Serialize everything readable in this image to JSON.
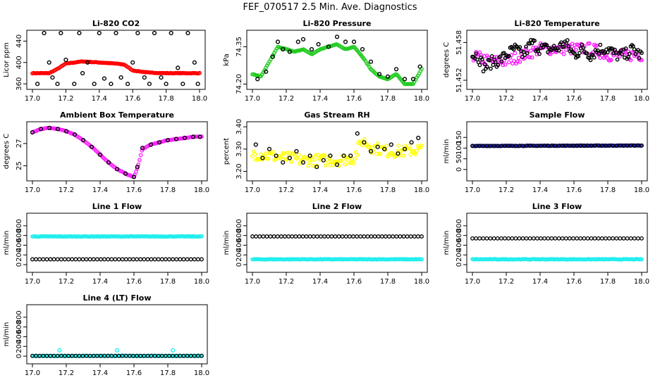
{
  "title": "FEF_070517  2.5 Min. Ave. Diagnostics",
  "colors": {
    "black": "#000000",
    "red": "#ff0000",
    "green": "#22cc22",
    "magenta": "#ff22ff",
    "yellow": "#ffff00",
    "blue": "#1a1aa6",
    "cyan": "#22eeee"
  },
  "chart_data": [
    {
      "type": "scatter",
      "title": "Li-820 CO2",
      "ylabel": "Licor ppm",
      "xlim": [
        17.0,
        18.0
      ],
      "ylim": [
        355,
        455
      ],
      "xticks": [
        "17.0",
        "17.2",
        "17.4",
        "17.6",
        "17.8",
        "18.0"
      ],
      "yticks": [
        {
          "v": 360,
          "label": "360"
        },
        {
          "v": 400,
          "label": "400"
        },
        {
          "v": 440,
          "label": "440"
        }
      ],
      "series": [
        {
          "color": "red",
          "style": "dense",
          "x": [
            17.0,
            17.1,
            17.15,
            17.2,
            17.3,
            17.4,
            17.5,
            17.55,
            17.6,
            17.7,
            17.8,
            17.9,
            18.0
          ],
          "y": [
            380,
            380,
            388,
            398,
            402,
            400,
            398,
            396,
            385,
            381,
            380,
            380,
            380
          ]
        },
        {
          "color": "black",
          "style": "ring",
          "x": [
            17.03,
            17.07,
            17.1,
            17.12,
            17.15,
            17.17,
            17.2,
            17.25,
            17.28,
            17.3,
            17.33,
            17.37,
            17.4,
            17.43,
            17.47,
            17.5,
            17.53,
            17.57,
            17.6,
            17.63,
            17.67,
            17.7,
            17.73,
            17.77,
            17.8,
            17.83,
            17.87,
            17.9,
            17.93,
            17.97,
            17.99
          ],
          "y": [
            360,
            455,
            400,
            372,
            360,
            455,
            405,
            360,
            455,
            380,
            400,
            360,
            455,
            370,
            360,
            455,
            372,
            360,
            400,
            455,
            372,
            360,
            455,
            372,
            360,
            455,
            390,
            360,
            455,
            400,
            360
          ]
        }
      ]
    },
    {
      "type": "scatter",
      "title": "Li-820 Pressure",
      "ylabel": "kPa",
      "xlim": [
        17.0,
        18.0
      ],
      "ylim": [
        74.19,
        74.405
      ],
      "xticks": [
        "17.0",
        "17.2",
        "17.4",
        "17.6",
        "17.8",
        "18.0"
      ],
      "yticks": [
        {
          "v": 74.2,
          "label": "74.20"
        },
        {
          "v": 74.35,
          "label": "74.35"
        }
      ],
      "series": [
        {
          "color": "green",
          "style": "dense",
          "x": [
            17.0,
            17.05,
            17.1,
            17.15,
            17.2,
            17.25,
            17.3,
            17.35,
            17.4,
            17.45,
            17.5,
            17.55,
            17.6,
            17.65,
            17.7,
            17.75,
            17.8,
            17.85,
            17.9,
            17.95,
            18.0
          ],
          "y": [
            74.24,
            74.23,
            74.29,
            74.35,
            74.34,
            74.33,
            74.34,
            74.32,
            74.34,
            74.35,
            74.36,
            74.34,
            74.35,
            74.31,
            74.26,
            74.23,
            74.22,
            74.24,
            74.2,
            74.2,
            74.26
          ]
        },
        {
          "color": "black",
          "style": "ring",
          "x": [
            17.03,
            17.08,
            17.12,
            17.15,
            17.18,
            17.22,
            17.27,
            17.3,
            17.35,
            17.39,
            17.45,
            17.5,
            17.55,
            17.6,
            17.65,
            17.7,
            17.75,
            17.8,
            17.85,
            17.9,
            17.95,
            17.99
          ],
          "y": [
            74.22,
            74.25,
            74.31,
            74.37,
            74.34,
            74.33,
            74.37,
            74.38,
            74.34,
            74.36,
            74.35,
            74.39,
            74.37,
            74.37,
            74.34,
            74.29,
            74.24,
            74.23,
            74.26,
            74.22,
            74.22,
            74.27
          ]
        }
      ]
    },
    {
      "type": "scatter",
      "title": "Li-820 Temperature",
      "ylabel": "degrees C",
      "xlim": [
        17.0,
        18.0
      ],
      "ylim": [
        51.451,
        51.4595
      ],
      "xticks": [
        "17.0",
        "17.2",
        "17.4",
        "17.6",
        "17.8",
        "18.0"
      ],
      "yticks": [
        {
          "v": 51.452,
          "label": "51.452"
        },
        {
          "v": 51.458,
          "label": "51.458"
        }
      ],
      "series": [
        {
          "color": "magenta",
          "style": "scatter-ring",
          "x": [
            17.0,
            17.1,
            17.2,
            17.3,
            17.4,
            17.5,
            17.6,
            17.7,
            17.8,
            17.9,
            18.0
          ],
          "y": [
            51.456,
            51.455,
            51.455,
            51.456,
            51.457,
            51.457,
            51.457,
            51.457,
            51.456,
            51.456,
            51.456
          ]
        },
        {
          "color": "black",
          "style": "scatter-ring",
          "x": [
            17.03,
            17.07,
            17.12,
            17.15,
            17.2,
            17.25,
            17.3,
            17.35,
            17.4,
            17.45,
            17.5,
            17.55,
            17.6,
            17.65,
            17.7,
            17.75,
            17.8,
            17.85,
            17.9,
            17.95,
            17.99
          ],
          "y": [
            51.456,
            51.454,
            51.455,
            51.455,
            51.456,
            51.457,
            51.456,
            51.458,
            51.457,
            51.457,
            51.457,
            51.458,
            51.456,
            51.457,
            51.456,
            51.457,
            51.457,
            51.456,
            51.456,
            51.457,
            51.456
          ]
        }
      ]
    },
    {
      "type": "scatter",
      "title": "Ambient Box Temperature",
      "ylabel": "degrees C",
      "xlim": [
        17.0,
        18.0
      ],
      "ylim": [
        23.9,
        28.7
      ],
      "xticks": [
        "17.0",
        "17.2",
        "17.4",
        "17.6",
        "17.8",
        "18.0"
      ],
      "yticks": [
        {
          "v": 25,
          "label": "25"
        },
        {
          "v": 27,
          "label": "27"
        }
      ],
      "series": [
        {
          "color": "magenta",
          "style": "dense",
          "x": [
            17.0,
            17.05,
            17.1,
            17.15,
            17.2,
            17.25,
            17.3,
            17.35,
            17.4,
            17.45,
            17.5,
            17.55,
            17.58,
            17.6,
            17.62,
            17.65,
            17.7,
            17.75,
            17.8,
            17.85,
            17.9,
            17.95,
            18.0
          ],
          "y": [
            28.0,
            28.3,
            28.4,
            28.3,
            28.1,
            27.8,
            27.3,
            26.7,
            26.0,
            25.3,
            24.7,
            24.3,
            24.1,
            24.0,
            24.8,
            26.5,
            26.9,
            27.1,
            27.3,
            27.4,
            27.5,
            27.6,
            27.6
          ]
        },
        {
          "color": "black",
          "style": "ring",
          "x": [
            17.0,
            17.05,
            17.1,
            17.15,
            17.2,
            17.25,
            17.3,
            17.35,
            17.4,
            17.45,
            17.5,
            17.55,
            17.6,
            17.62,
            17.65,
            17.7,
            17.75,
            17.8,
            17.85,
            17.9,
            17.95,
            17.99
          ],
          "y": [
            28.0,
            28.3,
            28.4,
            28.3,
            28.1,
            27.8,
            27.3,
            26.7,
            26.0,
            25.3,
            24.7,
            24.3,
            24.0,
            24.9,
            26.6,
            26.9,
            27.1,
            27.3,
            27.4,
            27.5,
            27.6,
            27.6
          ]
        }
      ]
    },
    {
      "type": "scatter",
      "title": "Gas Stream RH",
      "ylabel": "percent",
      "xlim": [
        17.0,
        18.0
      ],
      "ylim": [
        3.17,
        3.41
      ],
      "xticks": [
        "17.0",
        "17.2",
        "17.4",
        "17.6",
        "17.8",
        "18.0"
      ],
      "yticks": [
        {
          "v": 3.2,
          "label": "3.20"
        },
        {
          "v": 3.3,
          "label": "3.30"
        },
        {
          "v": 3.4,
          "label": "3.40"
        }
      ],
      "series": [
        {
          "color": "yellow",
          "style": "scatter-ring",
          "x": [
            17.0,
            17.1,
            17.2,
            17.3,
            17.4,
            17.5,
            17.6,
            17.65,
            17.7,
            17.8,
            17.9,
            18.0
          ],
          "y": [
            3.28,
            3.27,
            3.26,
            3.25,
            3.25,
            3.25,
            3.26,
            3.34,
            3.31,
            3.29,
            3.29,
            3.3
          ]
        },
        {
          "color": "black",
          "style": "ring",
          "x": [
            17.02,
            17.06,
            17.1,
            17.14,
            17.18,
            17.22,
            17.26,
            17.3,
            17.34,
            17.38,
            17.42,
            17.46,
            17.5,
            17.54,
            17.58,
            17.62,
            17.66,
            17.7,
            17.74,
            17.78,
            17.82,
            17.86,
            17.9,
            17.94,
            17.98
          ],
          "y": [
            3.32,
            3.26,
            3.3,
            3.27,
            3.24,
            3.26,
            3.29,
            3.24,
            3.27,
            3.22,
            3.25,
            3.27,
            3.23,
            3.27,
            3.27,
            3.37,
            3.33,
            3.29,
            3.31,
            3.3,
            3.32,
            3.28,
            3.3,
            3.33,
            3.35
          ]
        }
      ]
    },
    {
      "type": "scatter",
      "title": "Sample Flow",
      "ylabel": "ml/min",
      "xlim": [
        17.0,
        18.0
      ],
      "ylim": [
        -40,
        210
      ],
      "xticks": [
        "17.0",
        "17.2",
        "17.4",
        "17.6",
        "17.8",
        "18.0"
      ],
      "yticks": [
        {
          "v": 0,
          "label": "0"
        },
        {
          "v": 50,
          "label": "50"
        },
        {
          "v": 100,
          "label": "100"
        },
        {
          "v": 150,
          "label": "150"
        }
      ],
      "series": [
        {
          "color": "blue",
          "style": "dense",
          "x": [
            17.0,
            18.0
          ],
          "y": [
            110,
            112
          ]
        },
        {
          "color": "black",
          "style": "ring",
          "x": [
            17.0,
            18.0
          ],
          "y": [
            110,
            112
          ]
        }
      ]
    },
    {
      "type": "scatter",
      "title": "Line 1 Flow",
      "ylabel": "ml/min",
      "xlim": [
        17.0,
        18.0
      ],
      "ylim": [
        -100,
        1000
      ],
      "xticks": [
        "17.0",
        "17.2",
        "17.4",
        "17.6",
        "17.8",
        "18.0"
      ],
      "yticks": [
        {
          "v": 0,
          "label": "0"
        },
        {
          "v": 200,
          "label": "200"
        },
        {
          "v": 400,
          "label": "400"
        },
        {
          "v": 600,
          "label": "600"
        },
        {
          "v": 800,
          "label": "800"
        }
      ],
      "series": [
        {
          "color": "cyan",
          "style": "dense",
          "x": [
            17.0,
            18.0
          ],
          "y": [
            580,
            580
          ]
        },
        {
          "color": "black",
          "style": "ring",
          "x": [
            17.0,
            18.0
          ],
          "y": [
            110,
            110
          ]
        }
      ]
    },
    {
      "type": "scatter",
      "title": "Line 2 Flow",
      "ylabel": "ml/min",
      "xlim": [
        17.0,
        18.0
      ],
      "ylim": [
        -100,
        1000
      ],
      "xticks": [
        "17.0",
        "17.2",
        "17.4",
        "17.6",
        "17.8",
        "18.0"
      ],
      "yticks": [
        {
          "v": 0,
          "label": "0"
        },
        {
          "v": 200,
          "label": "200"
        },
        {
          "v": 400,
          "label": "400"
        },
        {
          "v": 600,
          "label": "600"
        },
        {
          "v": 800,
          "label": "800"
        }
      ],
      "series": [
        {
          "color": "cyan",
          "style": "dense",
          "x": [
            17.0,
            18.0
          ],
          "y": [
            110,
            110
          ]
        },
        {
          "color": "black",
          "style": "ring",
          "x": [
            17.0,
            18.0
          ],
          "y": [
            580,
            580
          ]
        }
      ]
    },
    {
      "type": "scatter",
      "title": "Line 3 Flow",
      "ylabel": "ml/min",
      "xlim": [
        17.0,
        18.0
      ],
      "ylim": [
        -100,
        1000
      ],
      "xticks": [
        "17.0",
        "17.2",
        "17.4",
        "17.6",
        "17.8",
        "18.0"
      ],
      "yticks": [
        {
          "v": 0,
          "label": "0"
        },
        {
          "v": 200,
          "label": "200"
        },
        {
          "v": 400,
          "label": "400"
        },
        {
          "v": 600,
          "label": "600"
        },
        {
          "v": 800,
          "label": "800"
        }
      ],
      "series": [
        {
          "color": "cyan",
          "style": "dense",
          "x": [
            17.0,
            18.0
          ],
          "y": [
            110,
            110
          ]
        },
        {
          "color": "black",
          "style": "ring",
          "x": [
            17.0,
            18.0
          ],
          "y": [
            540,
            540
          ]
        }
      ]
    },
    {
      "type": "scatter",
      "title": "Line 4 (LT) Flow",
      "ylabel": "ml/min",
      "xlim": [
        17.0,
        18.0
      ],
      "ylim": [
        -100,
        1000
      ],
      "xticks": [
        "17.0",
        "17.2",
        "17.4",
        "17.6",
        "17.8",
        "18.0"
      ],
      "yticks": [
        {
          "v": 0,
          "label": "0"
        },
        {
          "v": 200,
          "label": "200"
        },
        {
          "v": 400,
          "label": "400"
        },
        {
          "v": 600,
          "label": "600"
        },
        {
          "v": 800,
          "label": "800"
        }
      ],
      "series": [
        {
          "color": "cyan",
          "style": "dense",
          "x": [
            17.0,
            18.0
          ],
          "y": [
            5,
            5
          ]
        },
        {
          "color": "cyan",
          "style": "ring",
          "x": [
            17.16,
            17.5,
            17.83
          ],
          "y": [
            120,
            120,
            120
          ]
        },
        {
          "color": "black",
          "style": "ring",
          "x": [
            17.0,
            18.0
          ],
          "y": [
            5,
            5
          ]
        }
      ]
    }
  ]
}
